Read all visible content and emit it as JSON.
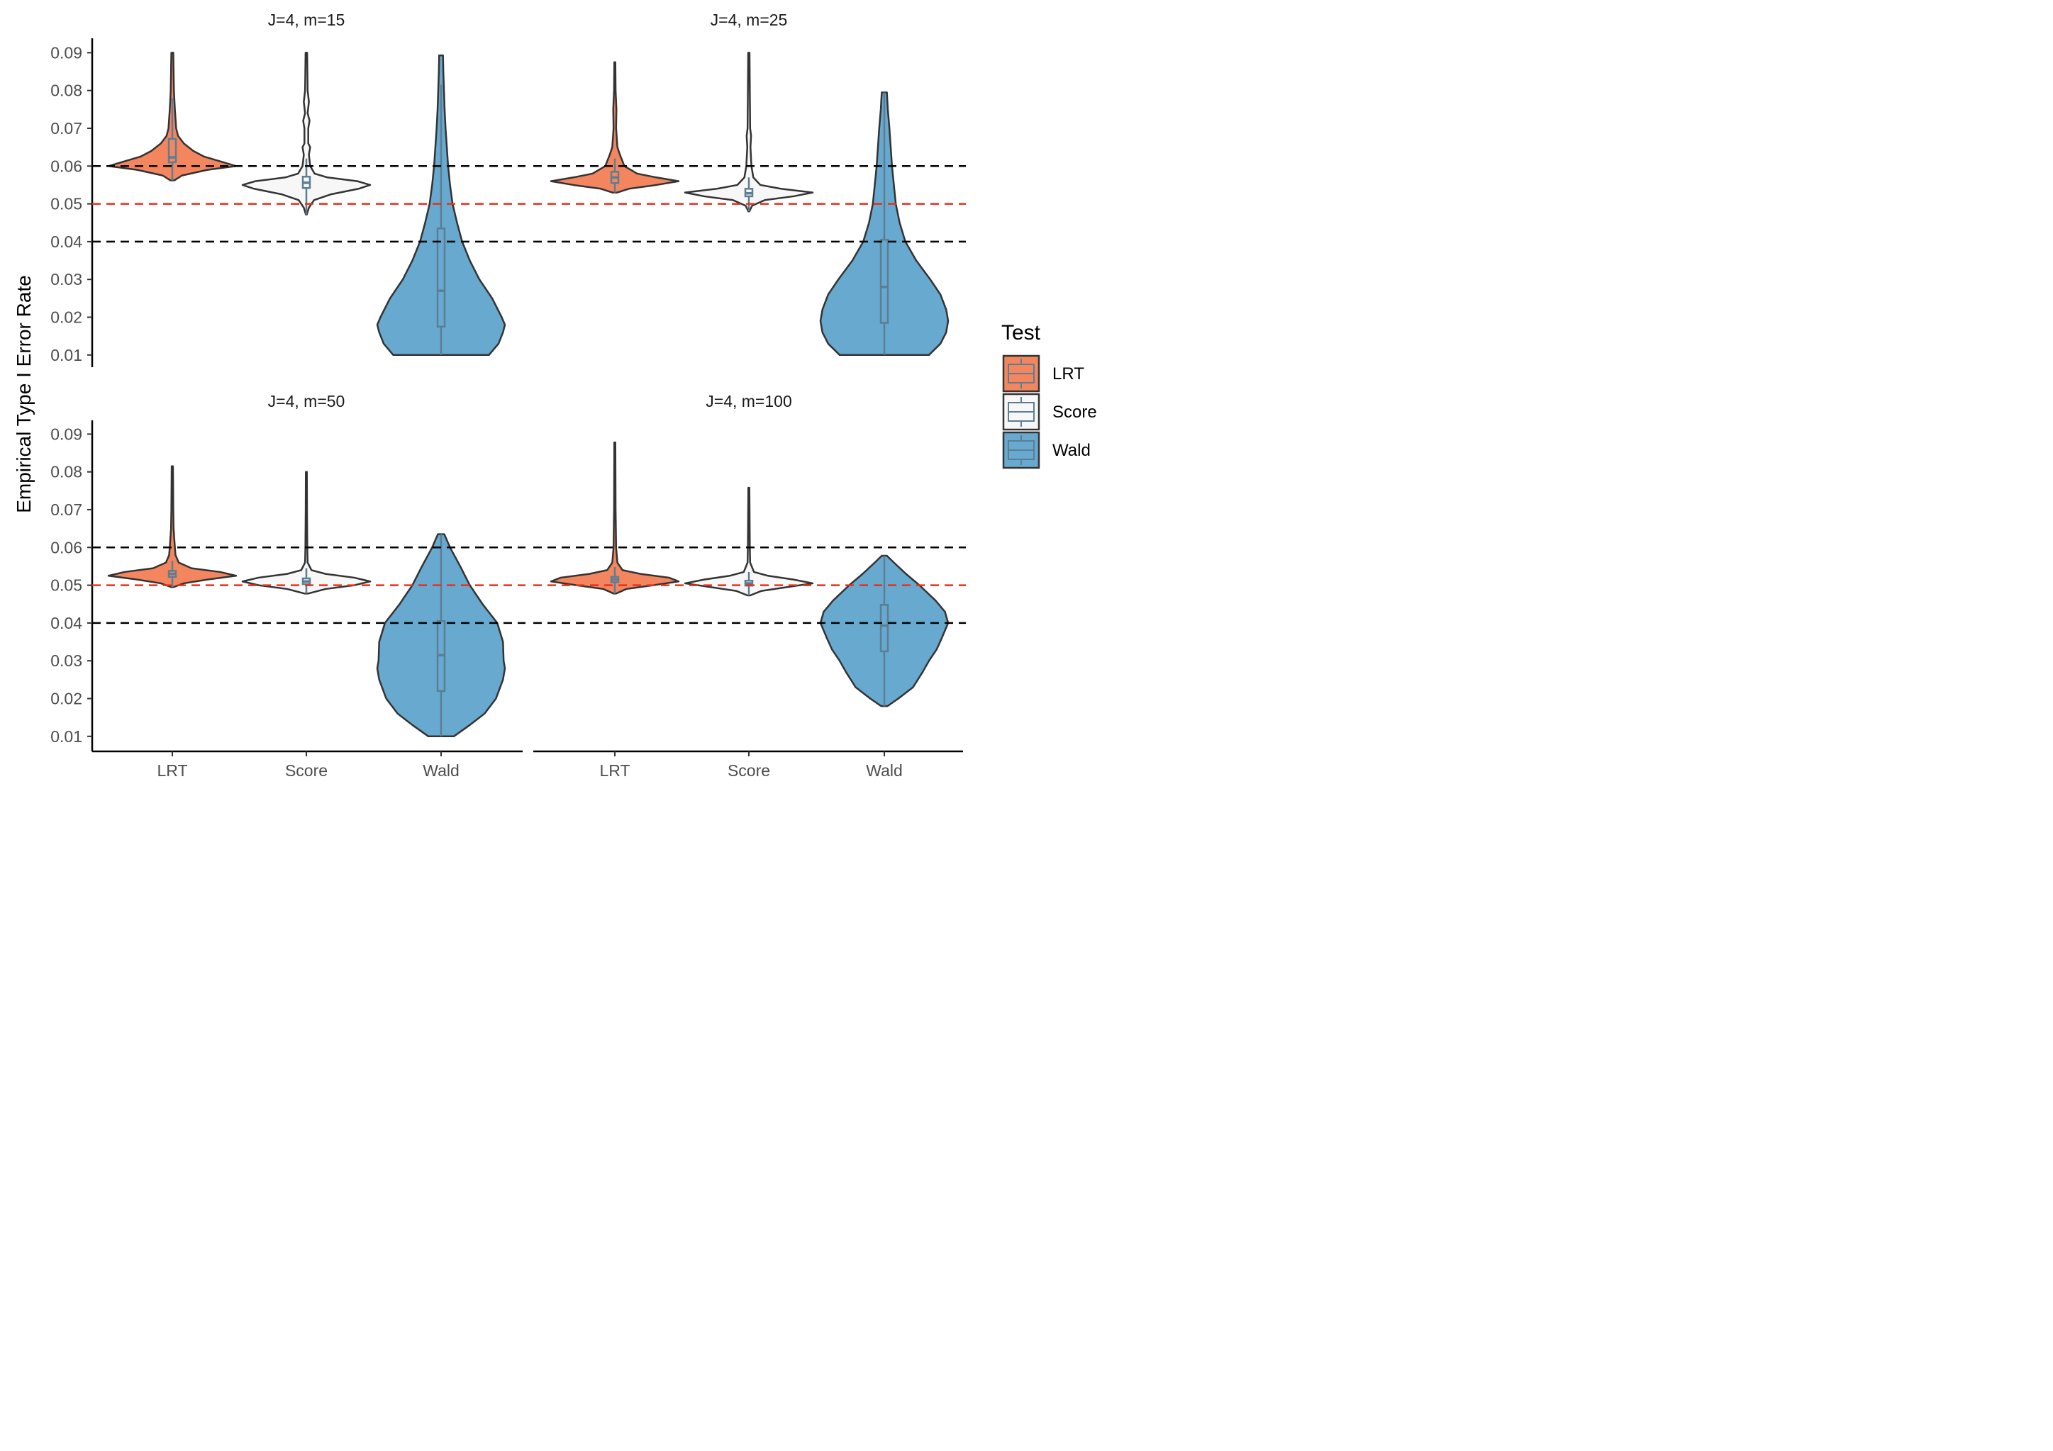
{
  "chart_data": {
    "type": "violin",
    "ylabel": "Empirical Type I Error Rate",
    "yticks": [
      "0.01",
      "0.02",
      "0.03",
      "0.04",
      "0.05",
      "0.06",
      "0.07",
      "0.08",
      "0.09"
    ],
    "categories": [
      "LRT",
      "Score",
      "Wald"
    ],
    "reference_lines": [
      {
        "y": 0.06,
        "color": "#000000",
        "style": "dashed"
      },
      {
        "y": 0.05,
        "color": "#e8311a",
        "style": "dashed"
      },
      {
        "y": 0.04,
        "color": "#000000",
        "style": "dashed"
      }
    ],
    "legend": {
      "title": "Test",
      "position": "right",
      "items": [
        {
          "label": "LRT",
          "color": "#f4865f"
        },
        {
          "label": "Score",
          "color": "#f7f7f7"
        },
        {
          "label": "Wald",
          "color": "#67a9cf"
        }
      ]
    },
    "colors": {
      "LRT": "#f4865f",
      "Score": "#f7f7f7",
      "Wald": "#67a9cf",
      "box": "#5c7e94",
      "outline": "#333333"
    },
    "panels": [
      {
        "title": "J=4, m=15",
        "series": [
          {
            "name": "LRT",
            "min": 0.0562,
            "max": 0.09,
            "median": 0.0623,
            "q1": 0.061,
            "q3": 0.0672,
            "whisker_low": 0.0562,
            "whisker_high": 0.078,
            "profile": [
              [
                0.0562,
                0.03
              ],
              [
                0.0575,
                0.15
              ],
              [
                0.059,
                0.55
              ],
              [
                0.06,
                1.0
              ],
              [
                0.061,
                0.8
              ],
              [
                0.0625,
                0.5
              ],
              [
                0.064,
                0.33
              ],
              [
                0.066,
                0.18
              ],
              [
                0.068,
                0.09
              ],
              [
                0.07,
                0.06
              ],
              [
                0.075,
                0.04
              ],
              [
                0.08,
                0.025
              ],
              [
                0.085,
                0.02
              ],
              [
                0.09,
                0.015
              ]
            ]
          },
          {
            "name": "Score",
            "min": 0.0472,
            "max": 0.09,
            "median": 0.0556,
            "q1": 0.0542,
            "q3": 0.0572,
            "whisker_low": 0.0472,
            "whisker_high": 0.062,
            "profile": [
              [
                0.0472,
                0.008
              ],
              [
                0.049,
                0.04
              ],
              [
                0.051,
                0.12
              ],
              [
                0.0525,
                0.38
              ],
              [
                0.054,
                0.82
              ],
              [
                0.055,
                1.0
              ],
              [
                0.056,
                0.8
              ],
              [
                0.057,
                0.33
              ],
              [
                0.058,
                0.13
              ],
              [
                0.06,
                0.06
              ],
              [
                0.063,
                0.04
              ],
              [
                0.065,
                0.06
              ],
              [
                0.066,
                0.03
              ],
              [
                0.07,
                0.03
              ],
              [
                0.072,
                0.05
              ],
              [
                0.074,
                0.02
              ],
              [
                0.077,
                0.04
              ],
              [
                0.08,
                0.02
              ],
              [
                0.09,
                0.012
              ]
            ]
          },
          {
            "name": "Wald",
            "min": 0.01,
            "max": 0.0893,
            "median": 0.027,
            "q1": 0.0175,
            "q3": 0.0435,
            "whisker_low": 0.01,
            "whisker_high": 0.0815,
            "profile": [
              [
                0.01,
                0.75
              ],
              [
                0.013,
                0.9
              ],
              [
                0.016,
                0.97
              ],
              [
                0.018,
                1.0
              ],
              [
                0.02,
                0.95
              ],
              [
                0.025,
                0.8
              ],
              [
                0.03,
                0.6
              ],
              [
                0.035,
                0.45
              ],
              [
                0.04,
                0.33
              ],
              [
                0.045,
                0.25
              ],
              [
                0.05,
                0.18
              ],
              [
                0.055,
                0.14
              ],
              [
                0.06,
                0.11
              ],
              [
                0.065,
                0.09
              ],
              [
                0.07,
                0.07
              ],
              [
                0.075,
                0.055
              ],
              [
                0.08,
                0.045
              ],
              [
                0.085,
                0.035
              ],
              [
                0.0893,
                0.03
              ]
            ]
          }
        ]
      },
      {
        "title": "J=4, m=25",
        "series": [
          {
            "name": "LRT",
            "min": 0.053,
            "max": 0.0875,
            "median": 0.057,
            "q1": 0.0555,
            "q3": 0.0585,
            "whisker_low": 0.053,
            "whisker_high": 0.062,
            "profile": [
              [
                0.053,
                0.04
              ],
              [
                0.054,
                0.22
              ],
              [
                0.055,
                0.65
              ],
              [
                0.056,
                1.0
              ],
              [
                0.057,
                0.65
              ],
              [
                0.058,
                0.35
              ],
              [
                0.06,
                0.15
              ],
              [
                0.063,
                0.08
              ],
              [
                0.065,
                0.04
              ],
              [
                0.07,
                0.02
              ],
              [
                0.075,
                0.025
              ],
              [
                0.08,
                0.012
              ],
              [
                0.0875,
                0.008
              ]
            ]
          },
          {
            "name": "Score",
            "min": 0.048,
            "max": 0.09,
            "median": 0.0528,
            "q1": 0.052,
            "q3": 0.054,
            "whisker_low": 0.048,
            "whisker_high": 0.057,
            "profile": [
              [
                0.048,
                0.008
              ],
              [
                0.0495,
                0.05
              ],
              [
                0.051,
                0.25
              ],
              [
                0.052,
                0.7
              ],
              [
                0.053,
                1.0
              ],
              [
                0.054,
                0.5
              ],
              [
                0.055,
                0.18
              ],
              [
                0.057,
                0.07
              ],
              [
                0.06,
                0.04
              ],
              [
                0.065,
                0.025
              ],
              [
                0.068,
                0.035
              ],
              [
                0.07,
                0.02
              ],
              [
                0.08,
                0.015
              ],
              [
                0.09,
                0.01
              ]
            ]
          },
          {
            "name": "Wald",
            "min": 0.01,
            "max": 0.0795,
            "median": 0.028,
            "q1": 0.0185,
            "q3": 0.0405,
            "whisker_low": 0.01,
            "whisker_high": 0.0795,
            "profile": [
              [
                0.01,
                0.7
              ],
              [
                0.013,
                0.88
              ],
              [
                0.016,
                0.97
              ],
              [
                0.019,
                1.0
              ],
              [
                0.022,
                0.97
              ],
              [
                0.026,
                0.88
              ],
              [
                0.03,
                0.72
              ],
              [
                0.035,
                0.5
              ],
              [
                0.04,
                0.33
              ],
              [
                0.045,
                0.24
              ],
              [
                0.05,
                0.18
              ],
              [
                0.055,
                0.15
              ],
              [
                0.06,
                0.12
              ],
              [
                0.065,
                0.1
              ],
              [
                0.07,
                0.08
              ],
              [
                0.075,
                0.055
              ],
              [
                0.0795,
                0.04
              ]
            ]
          }
        ]
      },
      {
        "title": "J=4, m=50",
        "series": [
          {
            "name": "LRT",
            "min": 0.0495,
            "max": 0.0815,
            "median": 0.053,
            "q1": 0.0522,
            "q3": 0.0538,
            "whisker_low": 0.0495,
            "whisker_high": 0.0565,
            "profile": [
              [
                0.0495,
                0.02
              ],
              [
                0.0505,
                0.18
              ],
              [
                0.0515,
                0.55
              ],
              [
                0.0525,
                1.0
              ],
              [
                0.0535,
                0.75
              ],
              [
                0.0545,
                0.3
              ],
              [
                0.056,
                0.1
              ],
              [
                0.058,
                0.05
              ],
              [
                0.06,
                0.04
              ],
              [
                0.065,
                0.02
              ],
              [
                0.07,
                0.015
              ],
              [
                0.0815,
                0.01
              ]
            ]
          },
          {
            "name": "Score",
            "min": 0.0478,
            "max": 0.08,
            "median": 0.051,
            "q1": 0.0503,
            "q3": 0.0518,
            "whisker_low": 0.0478,
            "whisker_high": 0.0545,
            "profile": [
              [
                0.0478,
                0.03
              ],
              [
                0.049,
                0.3
              ],
              [
                0.05,
                0.75
              ],
              [
                0.051,
                1.0
              ],
              [
                0.052,
                0.75
              ],
              [
                0.053,
                0.3
              ],
              [
                0.054,
                0.08
              ],
              [
                0.056,
                0.02
              ],
              [
                0.06,
                0.015
              ],
              [
                0.07,
                0.01
              ],
              [
                0.08,
                0.008
              ]
            ]
          },
          {
            "name": "Wald",
            "min": 0.01,
            "max": 0.0635,
            "median": 0.0315,
            "q1": 0.022,
            "q3": 0.0405,
            "whisker_low": 0.01,
            "whisker_high": 0.0635,
            "profile": [
              [
                0.01,
                0.2
              ],
              [
                0.013,
                0.45
              ],
              [
                0.016,
                0.68
              ],
              [
                0.02,
                0.86
              ],
              [
                0.025,
                0.97
              ],
              [
                0.028,
                1.0
              ],
              [
                0.03,
                0.98
              ],
              [
                0.035,
                0.97
              ],
              [
                0.04,
                0.88
              ],
              [
                0.045,
                0.65
              ],
              [
                0.05,
                0.45
              ],
              [
                0.055,
                0.3
              ],
              [
                0.06,
                0.14
              ],
              [
                0.0635,
                0.05
              ]
            ]
          }
        ]
      },
      {
        "title": "J=4, m=100",
        "series": [
          {
            "name": "LRT",
            "min": 0.0478,
            "max": 0.0878,
            "median": 0.0515,
            "q1": 0.0508,
            "q3": 0.0522,
            "whisker_low": 0.0478,
            "whisker_high": 0.0548,
            "profile": [
              [
                0.0478,
                0.02
              ],
              [
                0.049,
                0.18
              ],
              [
                0.05,
                0.6
              ],
              [
                0.051,
                1.0
              ],
              [
                0.052,
                0.85
              ],
              [
                0.053,
                0.4
              ],
              [
                0.054,
                0.12
              ],
              [
                0.056,
                0.04
              ],
              [
                0.06,
                0.02
              ],
              [
                0.07,
                0.012
              ],
              [
                0.0878,
                0.008
              ]
            ]
          },
          {
            "name": "Score",
            "min": 0.0473,
            "max": 0.0758,
            "median": 0.0505,
            "q1": 0.0499,
            "q3": 0.0512,
            "whisker_low": 0.0473,
            "whisker_high": 0.0535,
            "profile": [
              [
                0.0473,
                0.02
              ],
              [
                0.0485,
                0.2
              ],
              [
                0.0495,
                0.6
              ],
              [
                0.0505,
                1.0
              ],
              [
                0.0515,
                0.7
              ],
              [
                0.0525,
                0.3
              ],
              [
                0.0535,
                0.08
              ],
              [
                0.056,
                0.02
              ],
              [
                0.06,
                0.015
              ],
              [
                0.0758,
                0.008
              ]
            ]
          },
          {
            "name": "Wald",
            "min": 0.018,
            "max": 0.0578,
            "median": 0.0393,
            "q1": 0.0325,
            "q3": 0.0448,
            "whisker_low": 0.018,
            "whisker_high": 0.0578,
            "profile": [
              [
                0.018,
                0.05
              ],
              [
                0.02,
                0.22
              ],
              [
                0.023,
                0.45
              ],
              [
                0.027,
                0.6
              ],
              [
                0.03,
                0.7
              ],
              [
                0.033,
                0.82
              ],
              [
                0.036,
                0.9
              ],
              [
                0.04,
                1.0
              ],
              [
                0.043,
                0.95
              ],
              [
                0.046,
                0.8
              ],
              [
                0.05,
                0.55
              ],
              [
                0.053,
                0.34
              ],
              [
                0.056,
                0.15
              ],
              [
                0.0578,
                0.04
              ]
            ]
          }
        ]
      }
    ]
  }
}
